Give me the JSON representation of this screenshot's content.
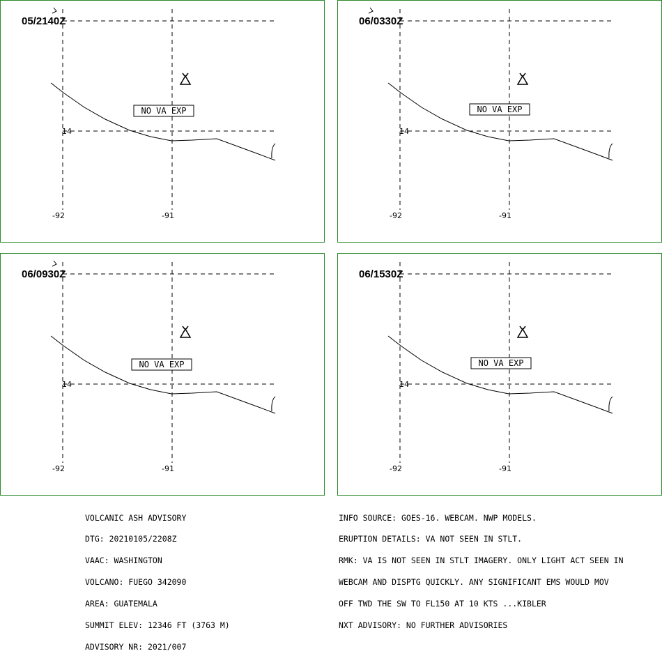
{
  "panels": [
    {
      "time": "05/2140Z",
      "va_label": "NO VA EXP",
      "lat_label": "14",
      "lon_labels": [
        "-92",
        "-91"
      ]
    },
    {
      "time": "06/0330Z",
      "va_label": "NO VA EXP",
      "lat_label": "14",
      "lon_labels": [
        "-92",
        "-91"
      ]
    },
    {
      "time": "06/0930Z",
      "va_label": "NO VA EXP",
      "lat_label": "14",
      "lon_labels": [
        "-92",
        "-91"
      ]
    },
    {
      "time": "06/1530Z",
      "va_label": "NO VA EXP",
      "lat_label": "14",
      "lon_labels": [
        "-92",
        "-91"
      ]
    }
  ],
  "advisory_left": [
    "VOLCANIC ASH ADVISORY",
    "DTG: 20210105/2208Z",
    "VAAC: WASHINGTON",
    "VOLCANO: FUEGO 342090",
    "AREA: GUATEMALA",
    "SUMMIT ELEV: 12346 FT (3763 M)",
    "ADVISORY NR: 2021/007"
  ],
  "advisory_right": [
    "INFO SOURCE: GOES-16. WEBCAM. NWP MODELS.",
    "ERUPTION DETAILS: VA NOT SEEN IN STLT.",
    "RMK: VA IS NOT SEEN IN STLT IMAGERY. ONLY LIGHT ACT SEEN IN",
    "WEBCAM AND DISPTG QUICKLY. ANY SIGNIFICANT EMS WOULD MOV",
    "OFF TWD THE SW TO FL150 AT 10 KTS ...KIBLER",
    "NXT ADVISORY: NO FURTHER ADVISORIES"
  ],
  "colors": {
    "panel_border": "#2a8a2a",
    "ink": "#000000"
  },
  "icons": {
    "volcano": "volcano-triangle-icon"
  }
}
